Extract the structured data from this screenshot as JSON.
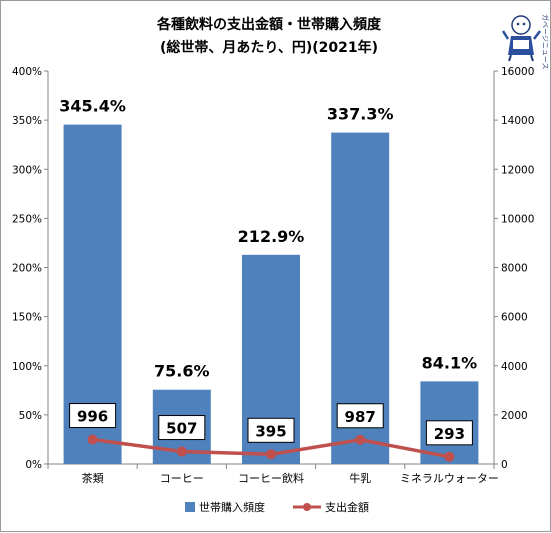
{
  "chart_data": {
    "type": "bar",
    "title": "各種飲料の支出金額・世帯購入頻度",
    "subtitle": "(総世帯、月あたり、円)(2021年)",
    "categories": [
      "茶類",
      "コーヒー",
      "コーヒー飲料",
      "牛乳",
      "ミネラルウォーター"
    ],
    "series": [
      {
        "name": "世帯購入頻度",
        "chart_type": "bar",
        "axis": "left",
        "values": [
          345.4,
          75.6,
          212.9,
          337.3,
          84.1
        ],
        "labels": [
          "345.4%",
          "75.6%",
          "212.9%",
          "337.3%",
          "84.1%"
        ],
        "color": "#4f81bd"
      },
      {
        "name": "支出金額",
        "chart_type": "line",
        "axis": "right",
        "values": [
          996,
          507,
          395,
          987,
          293
        ],
        "labels": [
          "996",
          "507",
          "395",
          "987",
          "293"
        ],
        "color": "#c0504d"
      }
    ],
    "y_left": {
      "ylim": [
        0,
        400
      ],
      "ticks": [
        0,
        50,
        100,
        150,
        200,
        250,
        300,
        350,
        400
      ],
      "tick_labels": [
        "0%",
        "50%",
        "100%",
        "150%",
        "200%",
        "250%",
        "300%",
        "350%",
        "400%"
      ]
    },
    "y_right": {
      "ylim": [
        0,
        16000
      ],
      "ticks": [
        0,
        2000,
        4000,
        6000,
        8000,
        10000,
        12000,
        14000,
        16000
      ],
      "tick_labels": [
        "0",
        "2000",
        "4000",
        "6000",
        "8000",
        "10000",
        "12000",
        "14000",
        "16000"
      ]
    },
    "grid": false,
    "legend": "bottom"
  },
  "logo": {
    "icon": "mascot-character-icon",
    "text": "ガベージニュース"
  }
}
